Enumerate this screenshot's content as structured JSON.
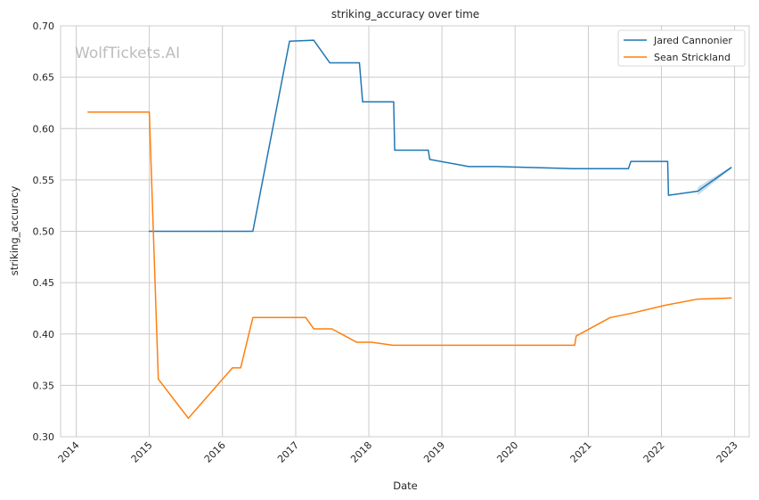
{
  "chart_data": {
    "type": "line",
    "title": "striking_accuracy over time",
    "xlabel": "Date",
    "ylabel": "striking_accuracy",
    "watermark": "WolfTickets.AI",
    "xlim": [
      "2013-10-15",
      "2023-03-15"
    ],
    "ylim": [
      0.3,
      0.7
    ],
    "x_ticks": [
      "2014",
      "2015",
      "2016",
      "2017",
      "2018",
      "2019",
      "2020",
      "2021",
      "2022",
      "2023"
    ],
    "y_ticks": [
      "0.30",
      "0.35",
      "0.40",
      "0.45",
      "0.50",
      "0.55",
      "0.60",
      "0.65",
      "0.70"
    ],
    "grid": true,
    "legend_position": "top-right",
    "series": [
      {
        "name": "Jared Cannonier",
        "color": "#1f77b4",
        "points": [
          [
            "2015-01-01",
            0.5
          ],
          [
            "2016-06-01",
            0.5
          ],
          [
            "2016-12-01",
            0.685
          ],
          [
            "2017-04-01",
            0.686
          ],
          [
            "2017-06-20",
            0.664
          ],
          [
            "2017-11-15",
            0.664
          ],
          [
            "2017-12-01",
            0.626
          ],
          [
            "2018-05-05",
            0.626
          ],
          [
            "2018-05-10",
            0.579
          ],
          [
            "2018-10-25",
            0.579
          ],
          [
            "2018-11-01",
            0.57
          ],
          [
            "2019-05-15",
            0.563
          ],
          [
            "2019-10-01",
            0.563
          ],
          [
            "2020-10-15",
            0.561
          ],
          [
            "2021-07-20",
            0.561
          ],
          [
            "2021-08-01",
            0.568
          ],
          [
            "2022-02-01",
            0.568
          ],
          [
            "2022-02-05",
            0.535
          ],
          [
            "2022-07-01",
            0.539
          ],
          [
            "2022-12-15",
            0.562
          ]
        ],
        "band": [
          [
            "2022-07-01",
            0.535,
            0.543
          ],
          [
            "2022-12-15",
            0.561,
            0.563
          ]
        ]
      },
      {
        "name": "Sean Strickland",
        "color": "#ff7f0e",
        "points": [
          [
            "2014-03-01",
            0.616
          ],
          [
            "2015-01-01",
            0.616
          ],
          [
            "2015-02-15",
            0.356
          ],
          [
            "2015-07-15",
            0.318
          ],
          [
            "2016-02-20",
            0.367
          ],
          [
            "2016-04-01",
            0.367
          ],
          [
            "2016-06-01",
            0.416
          ],
          [
            "2017-02-20",
            0.416
          ],
          [
            "2017-04-01",
            0.405
          ],
          [
            "2017-07-01",
            0.405
          ],
          [
            "2017-11-01",
            0.392
          ],
          [
            "2018-01-15",
            0.392
          ],
          [
            "2018-05-01",
            0.389
          ],
          [
            "2020-10-25",
            0.389
          ],
          [
            "2020-11-01",
            0.398
          ],
          [
            "2021-04-20",
            0.416
          ],
          [
            "2021-08-01",
            0.42
          ],
          [
            "2022-01-20",
            0.428
          ],
          [
            "2022-07-01",
            0.434
          ],
          [
            "2022-12-15",
            0.435
          ]
        ]
      }
    ]
  }
}
